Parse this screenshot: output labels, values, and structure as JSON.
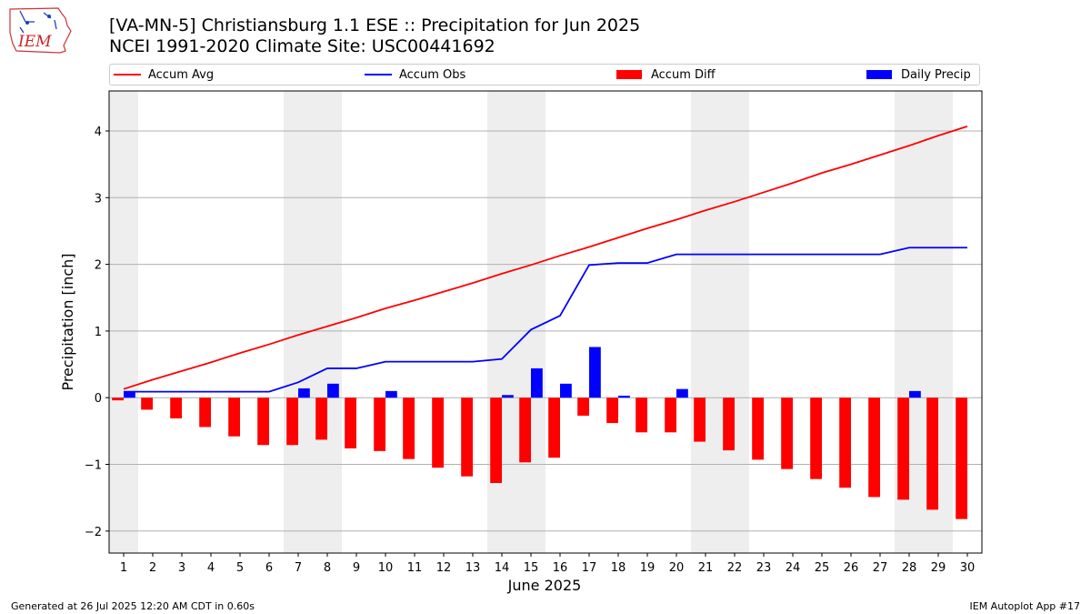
{
  "header": {
    "title_line1": "[VA-MN-5] Christiansburg 1.1 ESE :: Precipitation for Jun 2025",
    "title_line2": "NCEI 1991-2020 Climate Site: USC00441692",
    "logo_text": "IEM"
  },
  "footer": {
    "left": "Generated at 26 Jul 2025 12:20 AM CDT in 0.60s",
    "right": "IEM Autoplot App #17"
  },
  "colors": {
    "accum_avg": "#ff0000",
    "accum_obs": "#0000ff",
    "accum_diff": "#ff0000",
    "daily_precip": "#0000ff",
    "weekend_shade": "#eeeeee",
    "grid": "#b0b0b0"
  },
  "chart_data": {
    "type": "bar",
    "xlabel": "June 2025",
    "ylabel": "Precipitation [inch]",
    "xlim": [
      0.5,
      30.5
    ],
    "ylim": [
      -2.33,
      4.6
    ],
    "yticks": [
      -2,
      -1,
      0,
      1,
      2,
      3,
      4
    ],
    "ytick_labels": [
      "−2",
      "−1",
      "0",
      "1",
      "2",
      "3",
      "4"
    ],
    "grid": "horizontal",
    "legend_position": "top",
    "legend": [
      "Accum Avg",
      "Accum Obs",
      "Accum Diff",
      "Daily Precip"
    ],
    "days": [
      1,
      2,
      3,
      4,
      5,
      6,
      7,
      8,
      9,
      10,
      11,
      12,
      13,
      14,
      15,
      16,
      17,
      18,
      19,
      20,
      21,
      22,
      23,
      24,
      25,
      26,
      27,
      28,
      29,
      30
    ],
    "shaded_day_ranges": [
      [
        0.5,
        1.5
      ],
      [
        6.5,
        8.5
      ],
      [
        13.5,
        15.5
      ],
      [
        20.5,
        22.5
      ],
      [
        27.5,
        29.5
      ]
    ],
    "series": [
      {
        "name": "Accum Avg",
        "type": "line",
        "values": [
          0.13,
          0.27,
          0.4,
          0.53,
          0.67,
          0.8,
          0.94,
          1.07,
          1.2,
          1.34,
          1.46,
          1.59,
          1.72,
          1.86,
          1.99,
          2.13,
          2.26,
          2.4,
          2.54,
          2.67,
          2.81,
          2.94,
          3.08,
          3.22,
          3.37,
          3.5,
          3.64,
          3.78,
          3.93,
          4.07
        ]
      },
      {
        "name": "Accum Obs",
        "type": "line",
        "values": [
          0.09,
          0.09,
          0.09,
          0.09,
          0.09,
          0.09,
          0.23,
          0.44,
          0.44,
          0.54,
          0.54,
          0.54,
          0.54,
          0.58,
          1.02,
          1.23,
          1.99,
          2.02,
          2.02,
          2.15,
          2.15,
          2.15,
          2.15,
          2.15,
          2.15,
          2.15,
          2.15,
          2.25,
          2.25,
          2.25
        ]
      },
      {
        "name": "Accum Diff",
        "type": "bar",
        "values": [
          -0.04,
          -0.18,
          -0.31,
          -0.44,
          -0.58,
          -0.71,
          -0.71,
          -0.63,
          -0.76,
          -0.8,
          -0.92,
          -1.05,
          -1.18,
          -1.28,
          -0.97,
          -0.9,
          -0.27,
          -0.38,
          -0.52,
          -0.52,
          -0.66,
          -0.79,
          -0.93,
          -1.07,
          -1.22,
          -1.35,
          -1.49,
          -1.53,
          -1.68,
          -1.82
        ]
      },
      {
        "name": "Daily Precip",
        "type": "bar",
        "values": [
          0.09,
          0,
          0,
          0,
          0,
          0,
          0.14,
          0.21,
          0,
          0.1,
          0,
          0,
          0,
          0.04,
          0.44,
          0.21,
          0.76,
          0.03,
          0,
          0.13,
          0,
          0,
          0,
          0,
          0,
          0,
          0,
          0.1,
          0,
          0
        ]
      }
    ]
  }
}
